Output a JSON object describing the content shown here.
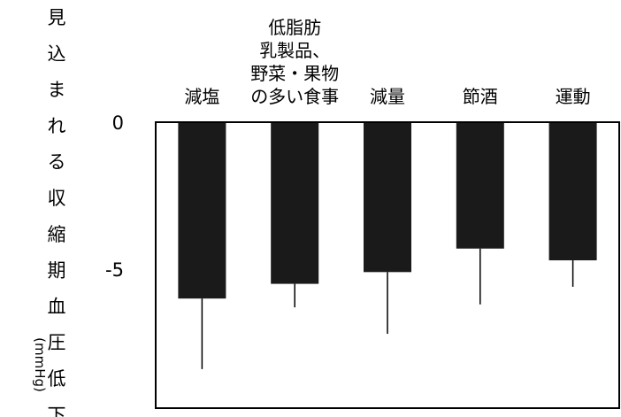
{
  "chart_data": {
    "type": "bar",
    "categories": [
      [
        "減塩"
      ],
      [
        "低脂肪",
        "乳製品、",
        "野菜・果物",
        "の多い食事"
      ],
      [
        "減量"
      ],
      [
        "節酒"
      ],
      [
        "運動"
      ]
    ],
    "values": [
      -6.0,
      -5.5,
      -5.1,
      -4.3,
      -4.7
    ],
    "error_lower": [
      2.4,
      0.8,
      2.1,
      1.9,
      0.9
    ],
    "ylim": [
      -10,
      0
    ],
    "yticks": [
      {
        "value": 0,
        "label": "0"
      },
      {
        "value": -5,
        "label": "-5"
      }
    ],
    "ylabel": "見込まれる収縮期血圧低下",
    "ylabel_unit": "(mmHg)",
    "bar_color": "#1a1a1a",
    "error_bar_color": "#000000",
    "grid": false,
    "title": "",
    "xlabel": ""
  }
}
